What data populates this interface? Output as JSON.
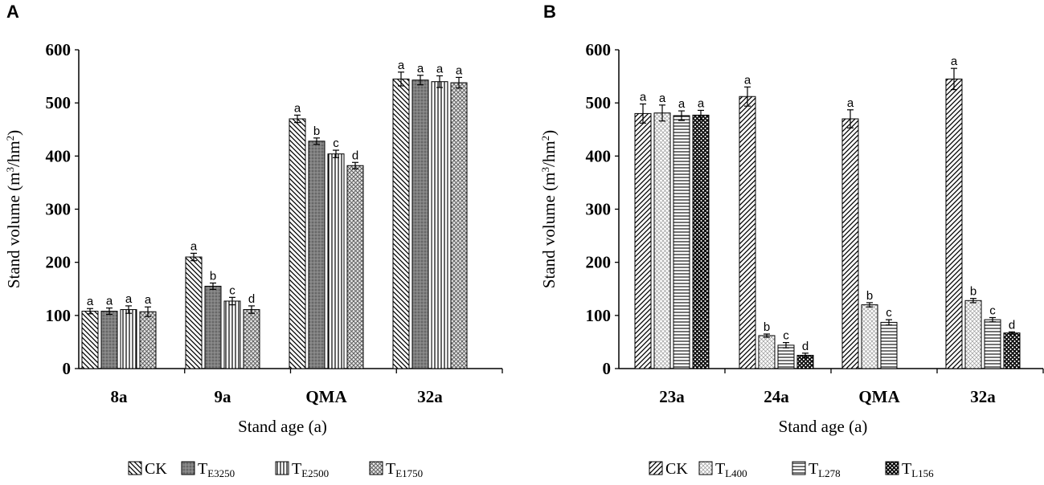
{
  "panels": [
    {
      "letter": "A",
      "chart_data": {
        "type": "bar",
        "categories": [
          "8a",
          "9a",
          "QMA",
          "32a"
        ],
        "series": [
          {
            "name": "CK",
            "values": [
              108,
              210,
              470,
              545
            ],
            "errors": [
              5,
              7,
              7,
              13
            ],
            "letters": [
              "a",
              "a",
              "a",
              "a"
            ]
          },
          {
            "name": "TE3250",
            "values": [
              108,
              155,
              428,
              543
            ],
            "errors": [
              6,
              6,
              6,
              9
            ],
            "letters": [
              "a",
              "b",
              "b",
              "a"
            ]
          },
          {
            "name": "TE2500",
            "values": [
              111,
              127,
              404,
              540
            ],
            "errors": [
              7,
              7,
              7,
              11
            ],
            "letters": [
              "a",
              "c",
              "c",
              "a"
            ]
          },
          {
            "name": "TE1750",
            "values": [
              107,
              111,
              382,
              538
            ],
            "errors": [
              9,
              7,
              6,
              10
            ],
            "letters": [
              "a",
              "d",
              "d",
              "a"
            ]
          }
        ],
        "legend": [
          {
            "main": "CK",
            "sub": ""
          },
          {
            "main": "T",
            "sub": "E3250"
          },
          {
            "main": "T",
            "sub": "E2500"
          },
          {
            "main": "T",
            "sub": "E1750"
          }
        ],
        "ylabel_main": "Stand volume (m",
        "ylabel_sup1": "3",
        "ylabel_mid": "/hm",
        "ylabel_sup2": "2",
        "ylabel_end": ")",
        "xlabel": "Stand age (a)",
        "ylim": [
          0,
          600
        ],
        "yticks": [
          "0",
          "100",
          "200",
          "300",
          "400",
          "500",
          "600"
        ],
        "grid": false
      }
    },
    {
      "letter": "B",
      "chart_data": {
        "type": "bar",
        "categories": [
          "23a",
          "24a",
          "QMA",
          "32a"
        ],
        "series": [
          {
            "name": "CK",
            "values": [
              480,
              512,
              470,
              545
            ],
            "errors": [
              18,
              18,
              17,
              20
            ],
            "letters": [
              "a",
              "a",
              "a",
              "a"
            ]
          },
          {
            "name": "TL400",
            "values": [
              481,
              62,
              120,
              128
            ],
            "errors": [
              15,
              3,
              4,
              4
            ],
            "letters": [
              "a",
              "b",
              "b",
              "b"
            ]
          },
          {
            "name": "TL278",
            "values": [
              476,
              44,
              87,
              92
            ],
            "errors": [
              9,
              5,
              5,
              4
            ],
            "letters": [
              "a",
              "c",
              "c",
              "c"
            ]
          },
          {
            "name": "TL156",
            "values": [
              477,
              25,
              null,
              67
            ],
            "errors": [
              9,
              4,
              null,
              2
            ],
            "letters": [
              "a",
              "d",
              "",
              "d"
            ]
          }
        ],
        "legend": [
          {
            "main": "CK",
            "sub": ""
          },
          {
            "main": "T",
            "sub": "L400"
          },
          {
            "main": "T",
            "sub": "L278"
          },
          {
            "main": "T",
            "sub": "L156"
          }
        ],
        "ylabel_main": "Stand volume (m",
        "ylabel_sup1": "3",
        "ylabel_mid": "/hm",
        "ylabel_sup2": "2",
        "ylabel_end": ")",
        "xlabel": "Stand age (a)",
        "ylim": [
          0,
          600
        ],
        "yticks": [
          "0",
          "100",
          "200",
          "300",
          "400",
          "500",
          "600"
        ],
        "grid": false
      }
    }
  ]
}
